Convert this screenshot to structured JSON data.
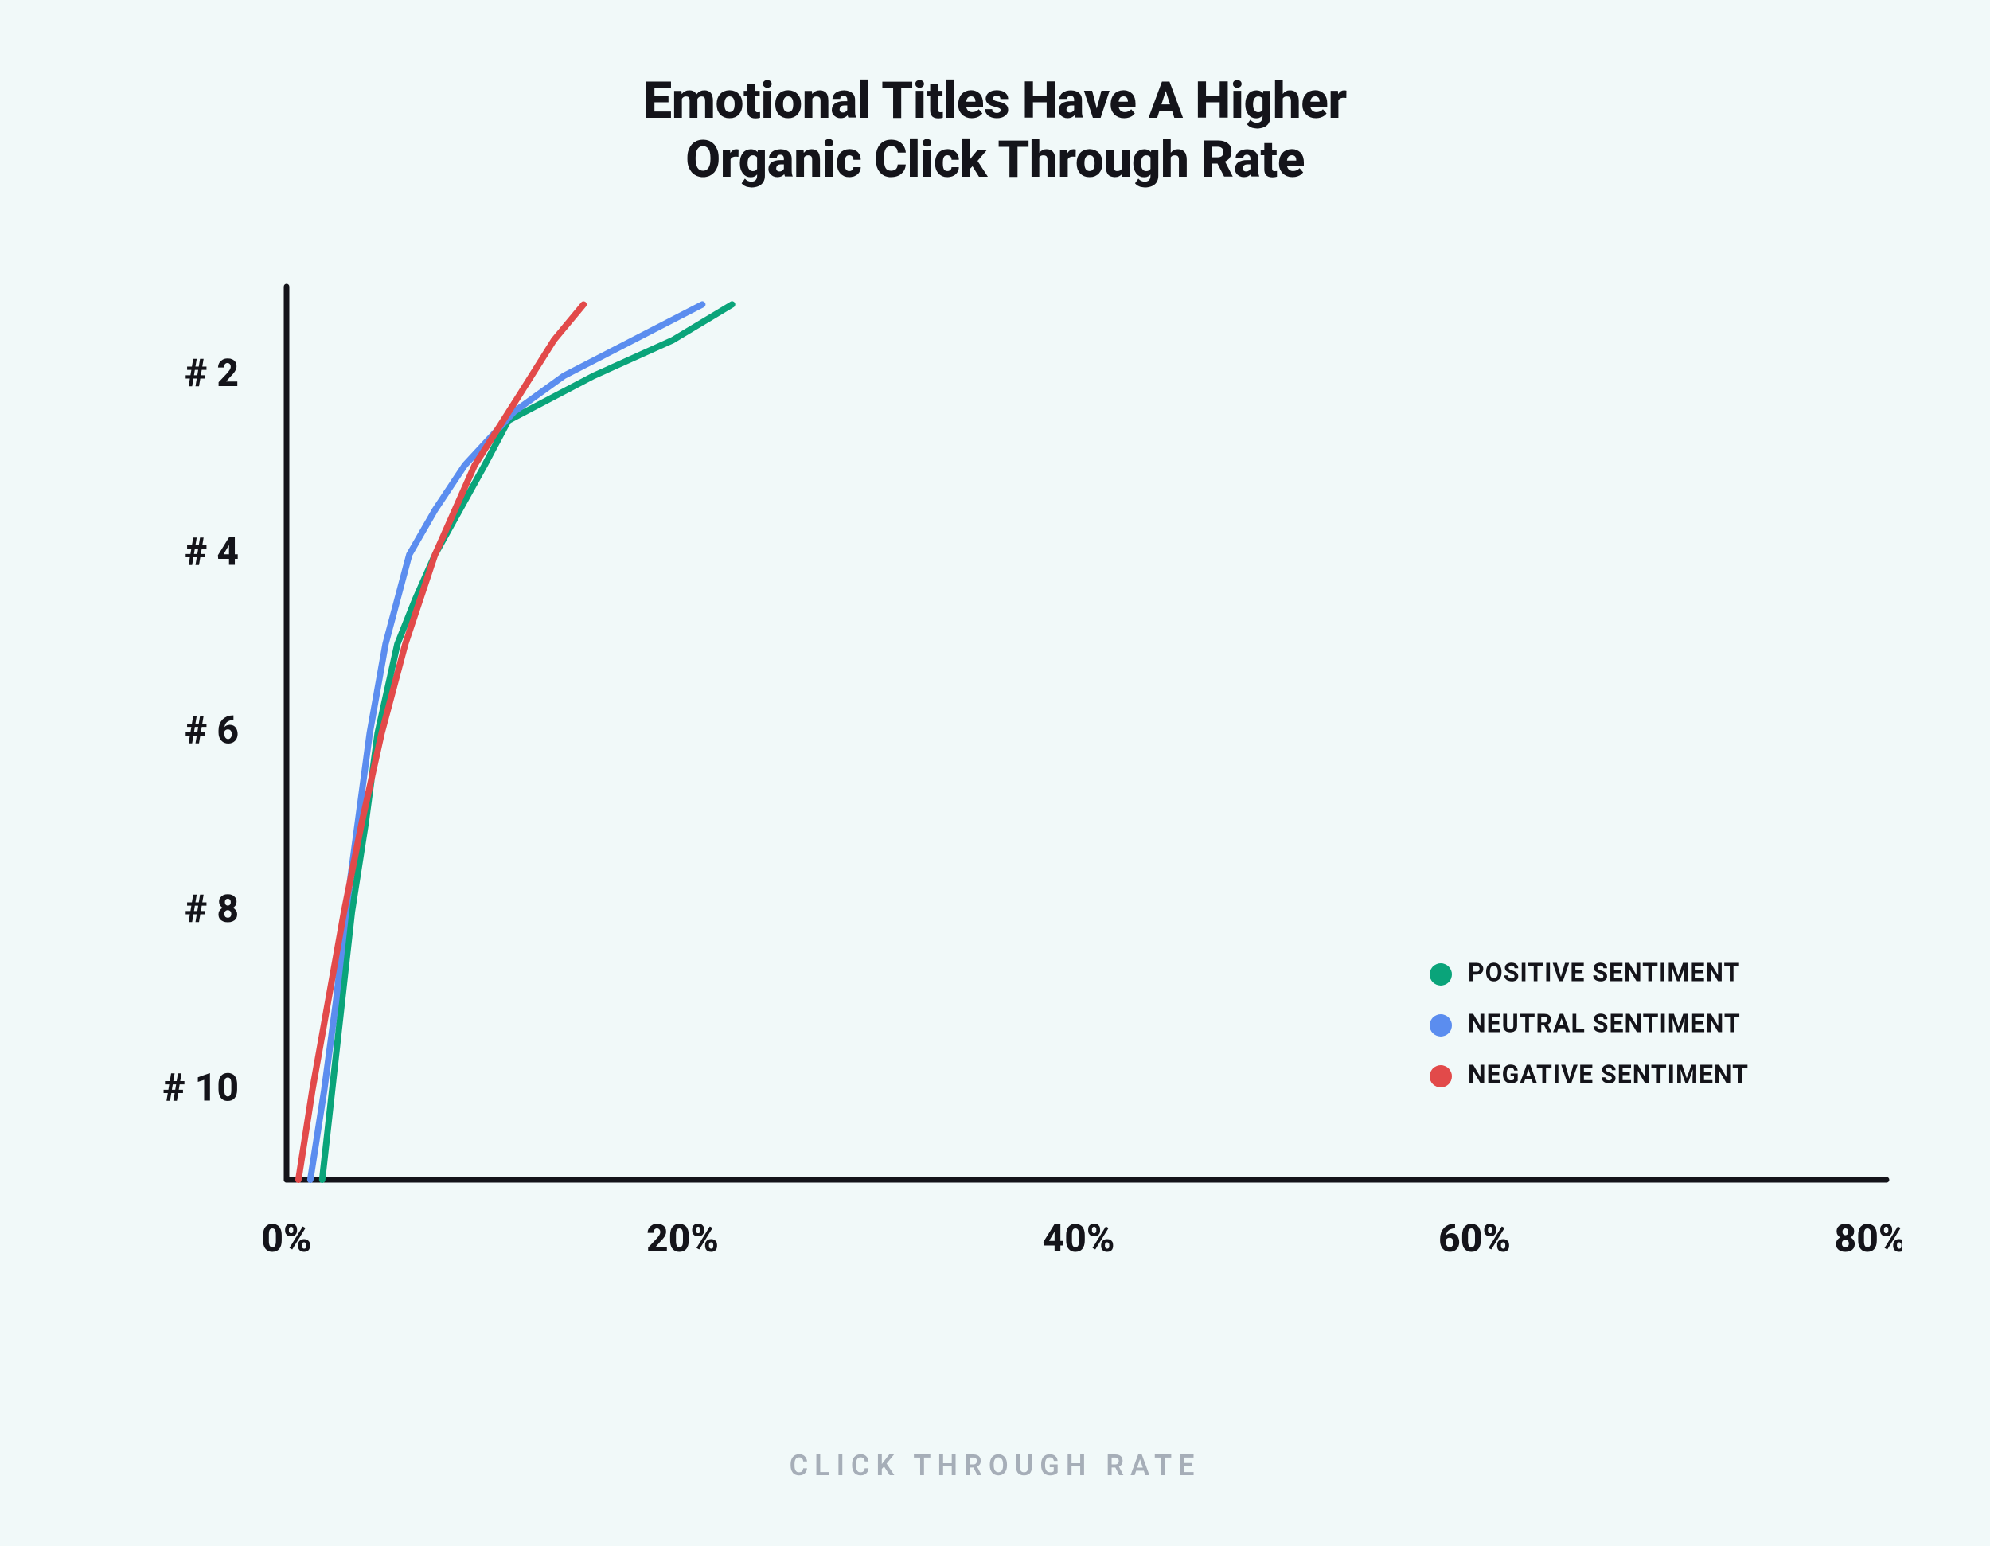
{
  "page": {
    "background_color": "#f1f9f9",
    "text_color": "#14141a",
    "muted_color": "#a6aeb8"
  },
  "title": {
    "line1": "Emotional Titles Have A Higher",
    "line2": "Organic Click Through Rate",
    "fontsize": 64
  },
  "chart": {
    "type": "line",
    "axis_color": "#14141a",
    "axis_stroke": 7,
    "line_stroke": 8,
    "x": {
      "label": "CLICK THROUGH RATE",
      "label_fontsize": 36,
      "min": 0,
      "max": 80,
      "ticks": [
        0,
        20,
        40,
        60,
        80
      ],
      "tick_labels": [
        "0%",
        "20%",
        "40%",
        "60%",
        "80%"
      ],
      "tick_fontsize": 48,
      "tick_fontweight": 800
    },
    "y": {
      "min": 1,
      "max": 11,
      "ticks": [
        2,
        4,
        6,
        8,
        10
      ],
      "tick_labels": [
        "# 2",
        "# 4",
        "# 6",
        "# 8",
        "# 10"
      ],
      "tick_fontsize": 48,
      "tick_fontweight": 800
    },
    "series": [
      {
        "name": "POSITIVE SENTIMENT",
        "color": "#0aa47a",
        "points": [
          {
            "rank": 11,
            "ctr": 1.8
          },
          {
            "rank": 10,
            "ctr": 2.3
          },
          {
            "rank": 9,
            "ctr": 2.8
          },
          {
            "rank": 8,
            "ctr": 3.3
          },
          {
            "rank": 7,
            "ctr": 4.0
          },
          {
            "rank": 6,
            "ctr": 4.6
          },
          {
            "rank": 5,
            "ctr": 5.6
          },
          {
            "rank": 4.5,
            "ctr": 6.5
          },
          {
            "rank": 4,
            "ctr": 7.5
          },
          {
            "rank": 3,
            "ctr": 10.0
          },
          {
            "rank": 2.5,
            "ctr": 11.2
          },
          {
            "rank": 2,
            "ctr": 15.5
          },
          {
            "rank": 1.6,
            "ctr": 19.5
          },
          {
            "rank": 1.2,
            "ctr": 22.5
          }
        ]
      },
      {
        "name": "NEUTRAL SENTIMENT",
        "color": "#5b8def",
        "points": [
          {
            "rank": 11,
            "ctr": 1.2
          },
          {
            "rank": 10,
            "ctr": 1.9
          },
          {
            "rank": 9,
            "ctr": 2.5
          },
          {
            "rank": 8,
            "ctr": 3.0
          },
          {
            "rank": 7,
            "ctr": 3.6
          },
          {
            "rank": 6,
            "ctr": 4.2
          },
          {
            "rank": 5,
            "ctr": 5.0
          },
          {
            "rank": 4,
            "ctr": 6.2
          },
          {
            "rank": 3.5,
            "ctr": 7.5
          },
          {
            "rank": 3,
            "ctr": 9.0
          },
          {
            "rank": 2.4,
            "ctr": 11.5
          },
          {
            "rank": 2,
            "ctr": 14.0
          },
          {
            "rank": 1.6,
            "ctr": 17.5
          },
          {
            "rank": 1.2,
            "ctr": 21.0
          }
        ]
      },
      {
        "name": "NEGATIVE SENTIMENT",
        "color": "#e24a4a",
        "points": [
          {
            "rank": 11,
            "ctr": 0.6
          },
          {
            "rank": 10,
            "ctr": 1.3
          },
          {
            "rank": 9,
            "ctr": 2.1
          },
          {
            "rank": 8,
            "ctr": 2.9
          },
          {
            "rank": 7,
            "ctr": 3.8
          },
          {
            "rank": 6,
            "ctr": 4.8
          },
          {
            "rank": 5,
            "ctr": 6.0
          },
          {
            "rank": 4,
            "ctr": 7.5
          },
          {
            "rank": 3,
            "ctr": 9.5
          },
          {
            "rank": 2.2,
            "ctr": 11.8
          },
          {
            "rank": 1.6,
            "ctr": 13.5
          },
          {
            "rank": 1.2,
            "ctr": 15.0
          }
        ]
      }
    ],
    "legend": {
      "fontsize": 32,
      "marker_radius": 14,
      "row_gap": 64,
      "text_color": "#14141a"
    }
  }
}
